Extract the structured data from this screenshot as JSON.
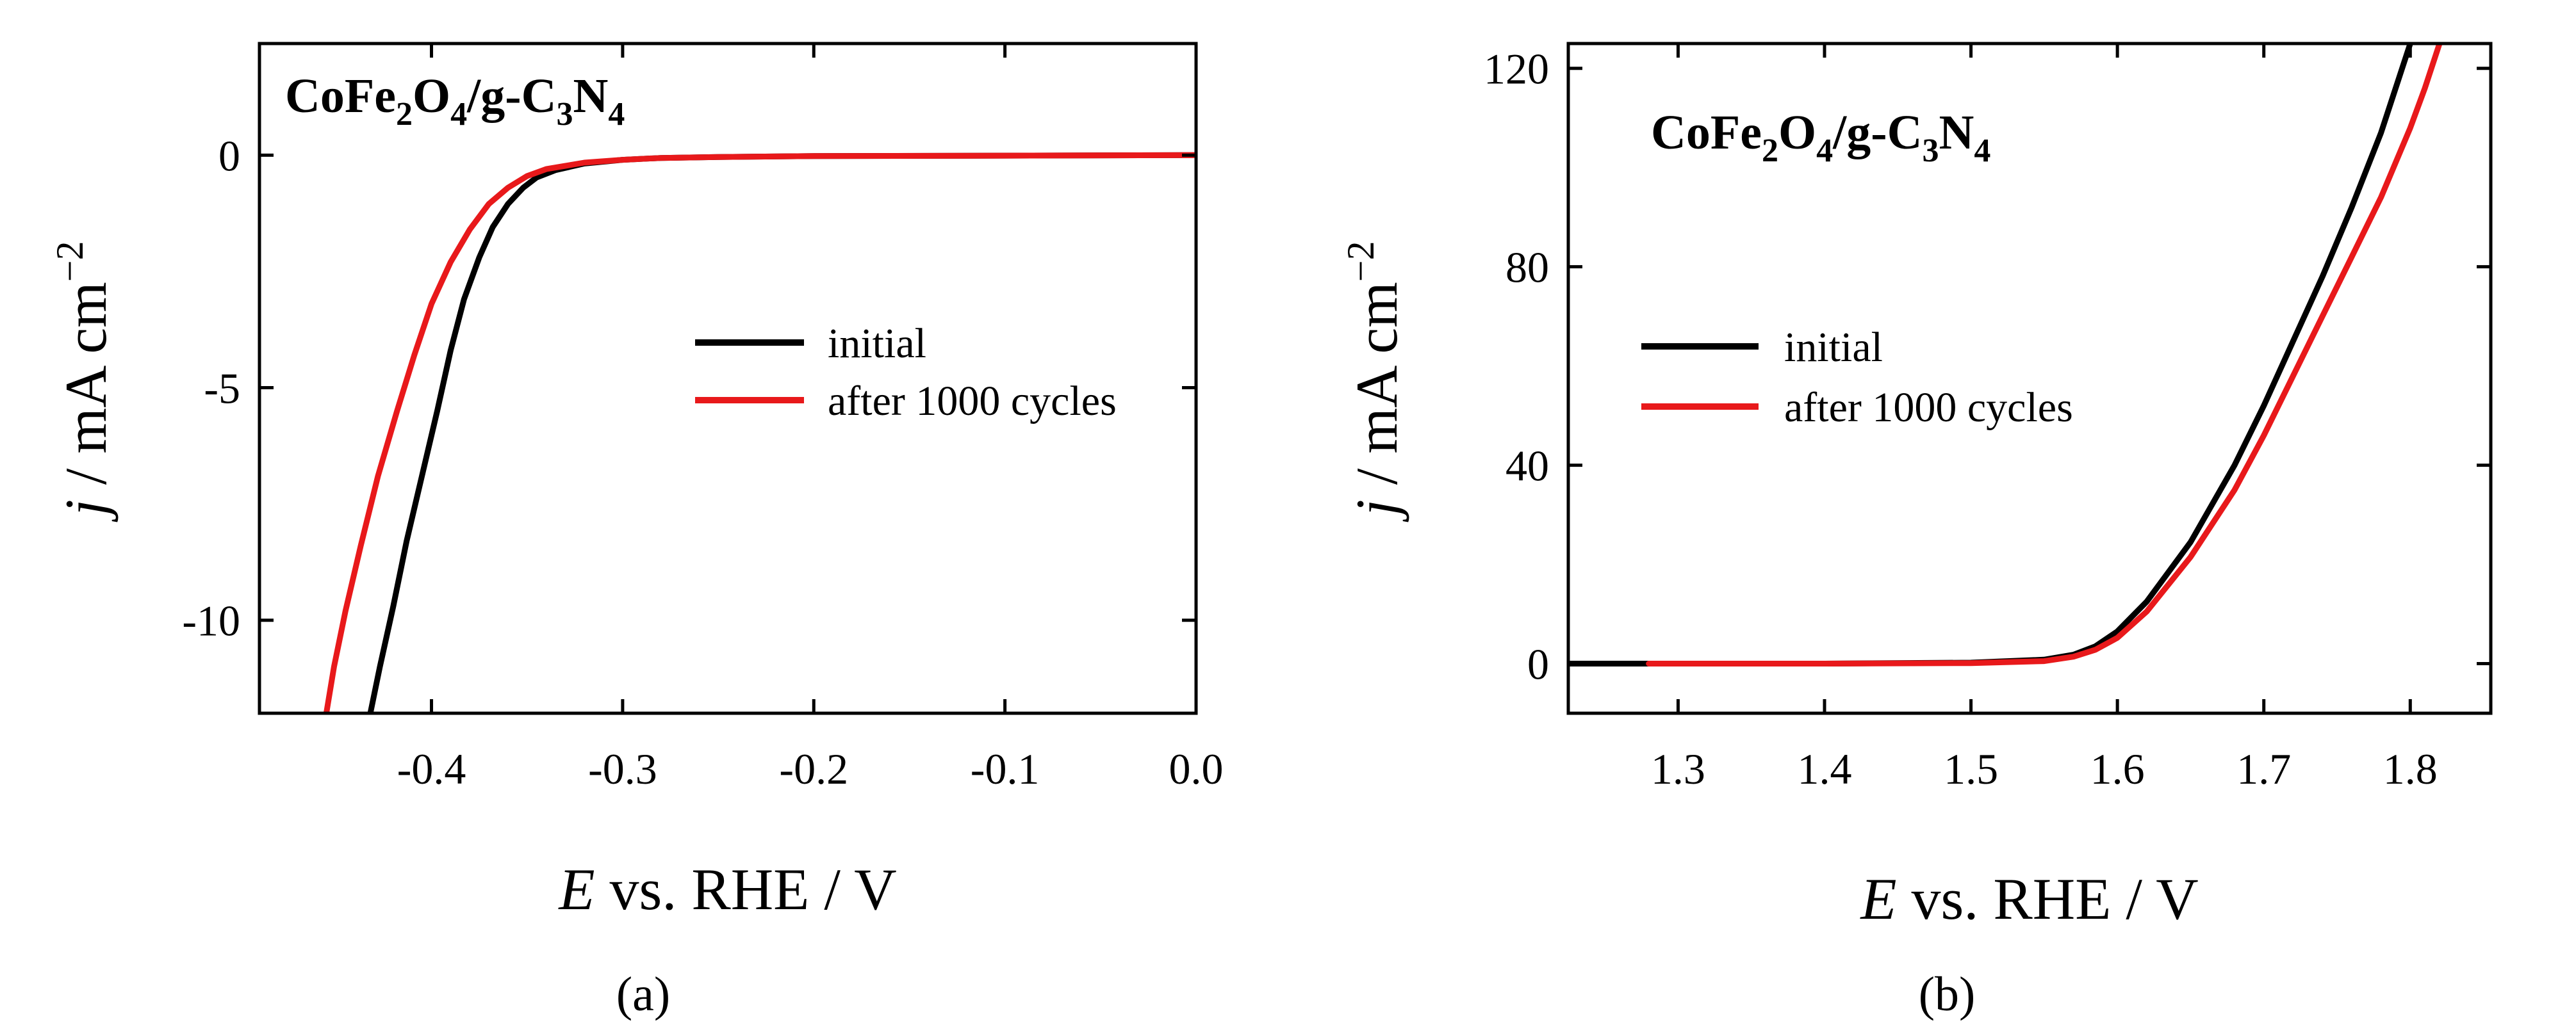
{
  "chart_data": [
    {
      "panel": "a",
      "type": "line",
      "caption": "(a)",
      "sample": {
        "base": "CoFe",
        "sub1": "2",
        "mid": "O",
        "sub2": "4",
        "mid2": "/g-C",
        "sub3": "3",
        "mid3": "N",
        "sub4": "4"
      },
      "xlabel": {
        "italic": "E",
        "text": " vs. RHE / V"
      },
      "ylabel": {
        "italic": "j",
        "text": " / mA cm",
        "sup": "−2"
      },
      "xlim": [
        -0.49,
        0.0
      ],
      "ylim": [
        -12,
        2.4
      ],
      "x_ticks": [
        -0.4,
        -0.3,
        -0.2,
        -0.1,
        0.0
      ],
      "x_tick_labels": [
        "-0.4",
        "-0.3",
        "-0.2",
        "-0.1",
        "0.0"
      ],
      "y_ticks": [
        0,
        -5,
        -10
      ],
      "y_tick_labels": [
        "0",
        "-5",
        "-10"
      ],
      "legend": {
        "position": "center-right"
      },
      "series": [
        {
          "name": "initial",
          "color": "#000000",
          "x": [
            -0.432,
            -0.427,
            -0.42,
            -0.413,
            -0.405,
            -0.397,
            -0.39,
            -0.383,
            -0.375,
            -0.368,
            -0.36,
            -0.352,
            -0.345,
            -0.335,
            -0.32,
            -0.3,
            -0.28,
            -0.25,
            -0.2,
            -0.1,
            0.0
          ],
          "y": [
            -12.0,
            -11.0,
            -9.7,
            -8.3,
            -6.9,
            -5.5,
            -4.2,
            -3.1,
            -2.2,
            -1.55,
            -1.05,
            -0.7,
            -0.48,
            -0.32,
            -0.18,
            -0.1,
            -0.06,
            -0.04,
            -0.02,
            -0.01,
            0.0
          ]
        },
        {
          "name": "after 1000 cycles",
          "color": "#e8191b",
          "x": [
            -0.455,
            -0.451,
            -0.445,
            -0.437,
            -0.428,
            -0.418,
            -0.409,
            -0.4,
            -0.39,
            -0.38,
            -0.37,
            -0.36,
            -0.35,
            -0.34,
            -0.32,
            -0.3,
            -0.28,
            -0.25,
            -0.2,
            -0.1,
            0.0
          ],
          "y": [
            -12.0,
            -11.0,
            -9.8,
            -8.4,
            -6.9,
            -5.5,
            -4.3,
            -3.2,
            -2.3,
            -1.6,
            -1.05,
            -0.7,
            -0.45,
            -0.3,
            -0.16,
            -0.1,
            -0.06,
            -0.04,
            -0.02,
            -0.01,
            0.0
          ]
        }
      ]
    },
    {
      "panel": "b",
      "type": "line",
      "caption": "(b)",
      "sample": {
        "base": "CoFe",
        "sub1": "2",
        "mid": "O",
        "sub2": "4",
        "mid2": "/g-C",
        "sub3": "3",
        "mid3": "N",
        "sub4": "4"
      },
      "xlabel": {
        "italic": "E",
        "text": " vs. RHE / V"
      },
      "ylabel": {
        "italic": "j",
        "text": " / mA cm",
        "sup": "−2"
      },
      "xlim": [
        1.225,
        1.855
      ],
      "ylim": [
        -10,
        125
      ],
      "x_ticks": [
        1.3,
        1.4,
        1.5,
        1.6,
        1.7,
        1.8
      ],
      "x_tick_labels": [
        "1.3",
        "1.4",
        "1.5",
        "1.6",
        "1.7",
        "1.8"
      ],
      "y_ticks": [
        0,
        40,
        80,
        120
      ],
      "y_tick_labels": [
        "0",
        "40",
        "80",
        "120"
      ],
      "legend": {
        "position": "center-left"
      },
      "series": [
        {
          "name": "initial",
          "color": "#000000",
          "x": [
            1.225,
            1.3,
            1.4,
            1.5,
            1.55,
            1.57,
            1.585,
            1.6,
            1.62,
            1.65,
            1.68,
            1.7,
            1.72,
            1.74,
            1.76,
            1.78,
            1.8
          ],
          "y": [
            0,
            0,
            0,
            0.2,
            0.8,
            1.8,
            3.5,
            6.5,
            12.5,
            24.5,
            40,
            52,
            65,
            78,
            92,
            107,
            125
          ]
        },
        {
          "name": "after 1000 cycles",
          "color": "#e8191b",
          "x": [
            1.28,
            1.3,
            1.4,
            1.5,
            1.55,
            1.57,
            1.585,
            1.6,
            1.62,
            1.65,
            1.68,
            1.7,
            1.72,
            1.74,
            1.76,
            1.78,
            1.8,
            1.81,
            1.82
          ],
          "y": [
            0,
            0,
            0,
            0.1,
            0.5,
            1.4,
            2.8,
            5.2,
            10.5,
            21.5,
            35,
            46,
            58,
            70,
            82,
            94,
            108,
            116,
            125
          ]
        }
      ]
    }
  ]
}
